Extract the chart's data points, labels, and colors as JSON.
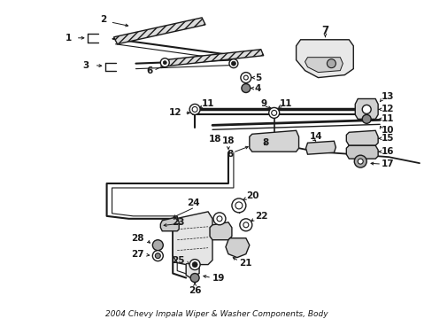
{
  "title": "2004 Chevy Impala Wiper & Washer Components, Body",
  "bg_color": "#ffffff",
  "line_color": "#1a1a1a",
  "text_color": "#1a1a1a",
  "label_fontsize": 7.5,
  "figsize": [
    4.89,
    3.6
  ],
  "dpi": 100
}
